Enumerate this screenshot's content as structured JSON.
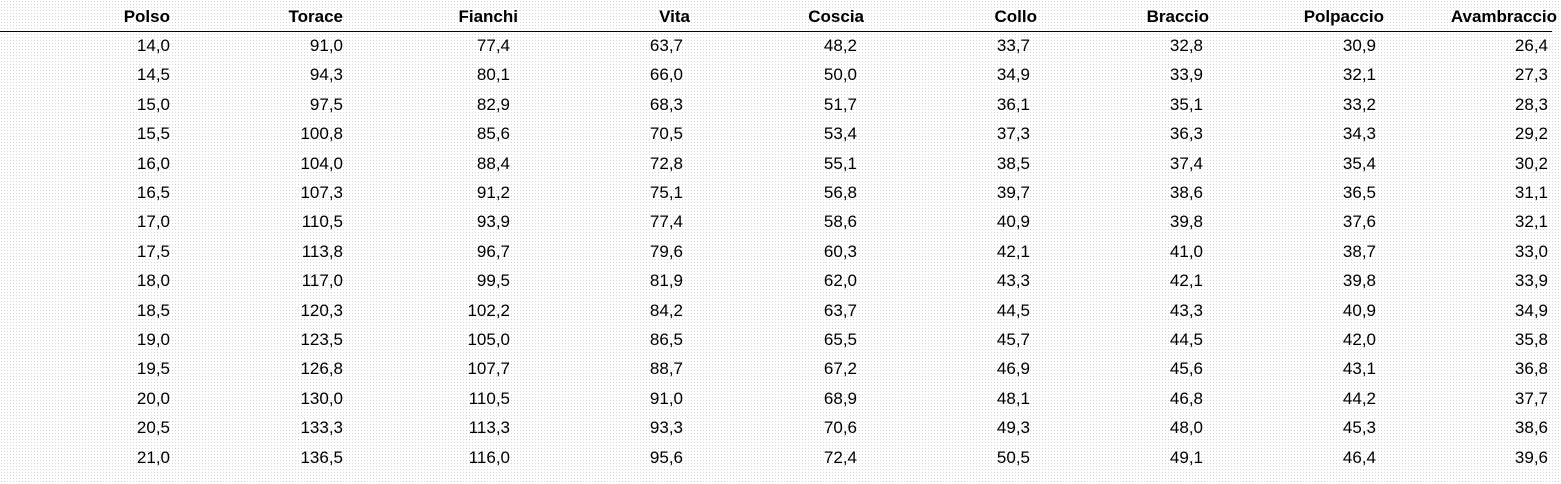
{
  "table": {
    "header": [
      "Polso",
      "Torace",
      "Fianchi",
      "Vita",
      "Coscia",
      "Collo",
      "Braccio",
      "Polpaccio",
      "Avambraccio"
    ],
    "rows": [
      [
        "14,0",
        "91,0",
        "77,4",
        "63,7",
        "48,2",
        "33,7",
        "32,8",
        "30,9",
        "26,4"
      ],
      [
        "14,5",
        "94,3",
        "80,1",
        "66,0",
        "50,0",
        "34,9",
        "33,9",
        "32,1",
        "27,3"
      ],
      [
        "15,0",
        "97,5",
        "82,9",
        "68,3",
        "51,7",
        "36,1",
        "35,1",
        "33,2",
        "28,3"
      ],
      [
        "15,5",
        "100,8",
        "85,6",
        "70,5",
        "53,4",
        "37,3",
        "36,3",
        "34,3",
        "29,2"
      ],
      [
        "16,0",
        "104,0",
        "88,4",
        "72,8",
        "55,1",
        "38,5",
        "37,4",
        "35,4",
        "30,2"
      ],
      [
        "16,5",
        "107,3",
        "91,2",
        "75,1",
        "56,8",
        "39,7",
        "38,6",
        "36,5",
        "31,1"
      ],
      [
        "17,0",
        "110,5",
        "93,9",
        "77,4",
        "58,6",
        "40,9",
        "39,8",
        "37,6",
        "32,1"
      ],
      [
        "17,5",
        "113,8",
        "96,7",
        "79,6",
        "60,3",
        "42,1",
        "41,0",
        "38,7",
        "33,0"
      ],
      [
        "18,0",
        "117,0",
        "99,5",
        "81,9",
        "62,0",
        "43,3",
        "42,1",
        "39,8",
        "33,9"
      ],
      [
        "18,5",
        "120,3",
        "102,2",
        "84,2",
        "63,7",
        "44,5",
        "43,3",
        "40,9",
        "34,9"
      ],
      [
        "19,0",
        "123,5",
        "105,0",
        "86,5",
        "65,5",
        "45,7",
        "44,5",
        "42,0",
        "35,8"
      ],
      [
        "19,5",
        "126,8",
        "107,7",
        "88,7",
        "67,2",
        "46,9",
        "45,6",
        "43,1",
        "36,8"
      ],
      [
        "20,0",
        "130,0",
        "110,5",
        "91,0",
        "68,9",
        "48,1",
        "46,8",
        "44,2",
        "37,7"
      ],
      [
        "20,5",
        "133,3",
        "113,3",
        "93,3",
        "70,6",
        "49,3",
        "48,0",
        "45,3",
        "38,6"
      ],
      [
        "21,0",
        "136,5",
        "116,0",
        "95,6",
        "72,4",
        "50,5",
        "49,1",
        "46,4",
        "39,6"
      ]
    ]
  }
}
